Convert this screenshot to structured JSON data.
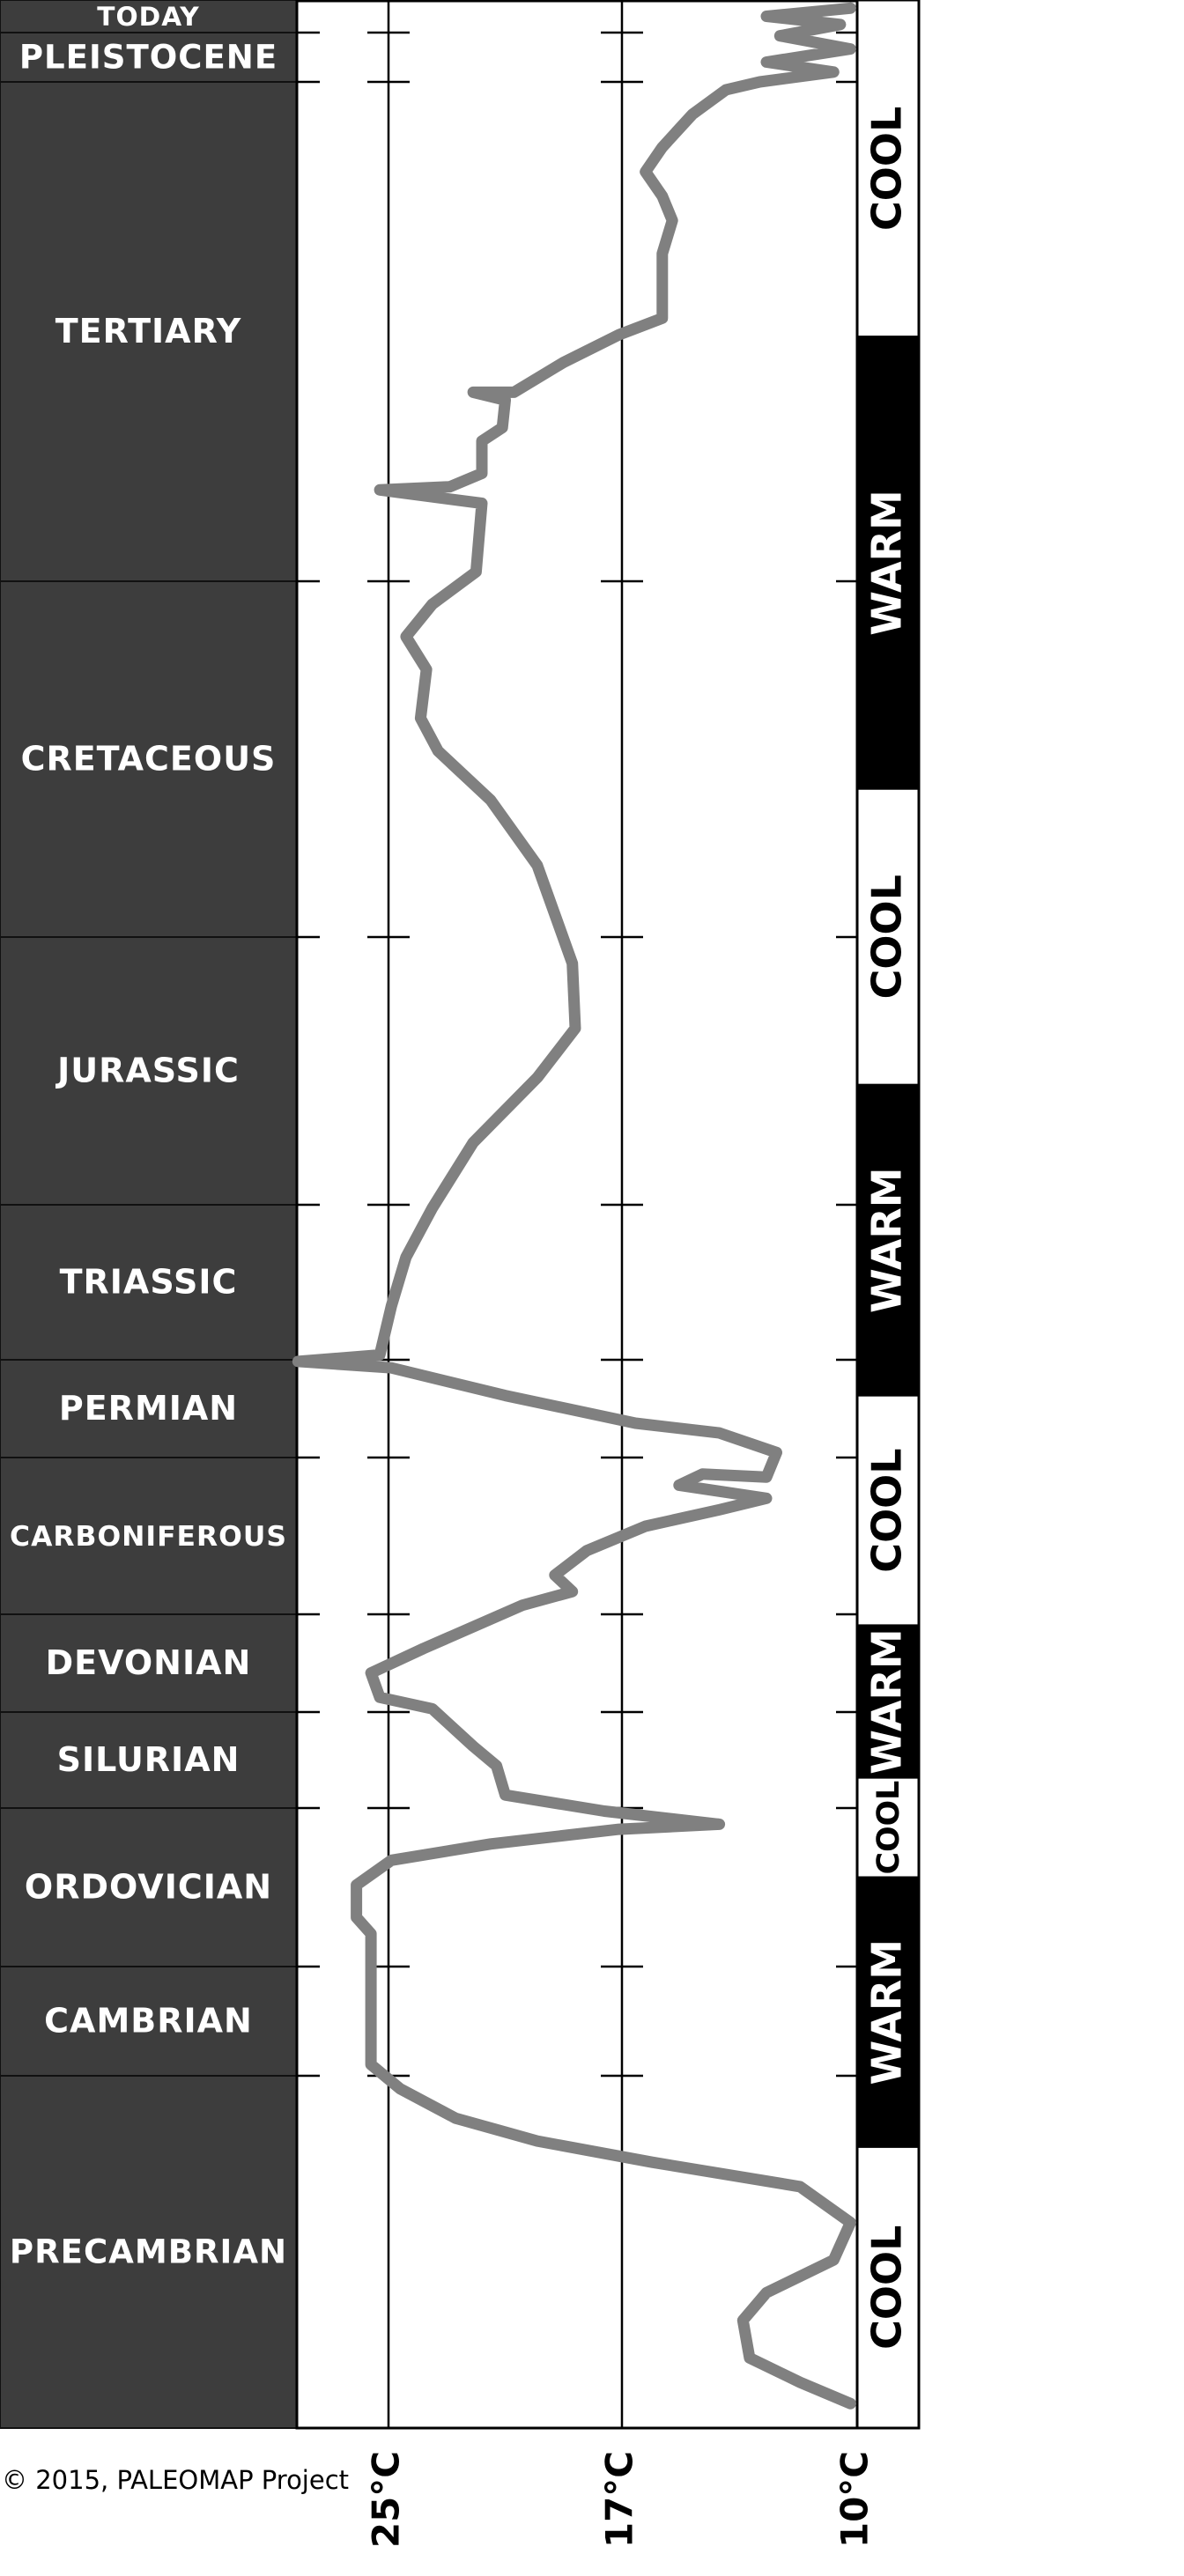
{
  "chart_data": {
    "type": "line",
    "categories": [
      "TODAY",
      "PLEISTOCENE",
      "TERTIARY",
      "CRETACEOUS",
      "JURASSIC",
      "TRIASSIC",
      "PERMIAN",
      "CARBONIFEROUS",
      "DEVONIAN",
      "SILURIAN",
      "ORDOVICIAN",
      "CAMBRIAN",
      "PRECAMBRIAN"
    ],
    "period_bounds": [
      0,
      0.01,
      2.6,
      66,
      145,
      201,
      252,
      299,
      359,
      419,
      444,
      485,
      541,
      750
    ],
    "climate": [
      {
        "label": "COOL",
        "start": 0,
        "end": 35,
        "color": "#ffffff"
      },
      {
        "label": "WARM",
        "start": 35,
        "end": 112,
        "color": "#000000"
      },
      {
        "label": "COOL",
        "start": 112,
        "end": 176,
        "color": "#ffffff"
      },
      {
        "label": "WARM",
        "start": 176,
        "end": 269,
        "color": "#000000"
      },
      {
        "label": "COOL",
        "start": 269,
        "end": 366,
        "color": "#ffffff"
      },
      {
        "label": "WARM",
        "start": 366,
        "end": 436,
        "color": "#000000"
      },
      {
        "label": "COOL",
        "start": 436,
        "end": 462,
        "color": "#ffffff"
      },
      {
        "label": "WARM",
        "start": 462,
        "end": 583,
        "color": "#000000"
      },
      {
        "label": "COOL",
        "start": 583,
        "end": 750,
        "color": "#ffffff"
      }
    ],
    "x": [
      0.0025,
      0.005,
      0.0075,
      0.18,
      0.87,
      1.56,
      2.08,
      2.6,
      3.6,
      6.7,
      10.9,
      14.0,
      17.1,
      20.2,
      24.4,
      32.6,
      34.7,
      38.2,
      42.0,
      42.0,
      43.0,
      46.5,
      48.2,
      52.3,
      54.0,
      54.4,
      56.1,
      64.8,
      71.1,
      78.3,
      85.6,
      96.4,
      103.7,
      114.6,
      129.1,
      150.5,
      164.1,
      174.4,
      188.0,
      202.1,
      218.2,
      234.3,
      250.4,
      252.8,
      255.9,
      269.2,
      282.5,
      287.2,
      296.6,
      306.5,
      305.3,
      309.6,
      314.6,
      319.0,
      325.3,
      334.6,
      344.0,
      350.3,
      355.5,
      380,
      395,
      410,
      417,
      427.9,
      433.0,
      440.6,
      444.8,
      448.2,
      449.5,
      453.3,
      457.5,
      463.9,
      472.3,
      476.5,
      535.2,
      548.7,
      566.2,
      579.7,
      592.3,
      606.8,
      628.1,
      650.3,
      669.7,
      686.1,
      708.4,
      722.9,
      735.5
    ],
    "values": [
      10.2,
      12.7,
      10.5,
      12.3,
      10.2,
      12.7,
      10.7,
      12.9,
      13.9,
      14.9,
      15.8,
      16.3,
      15.8,
      15.5,
      15.8,
      15.8,
      17.1,
      19.0,
      20.7,
      22.1,
      21.0,
      21.1,
      21.8,
      21.8,
      22.9,
      25.3,
      21.8,
      22.0,
      23.5,
      24.4,
      23.7,
      23.9,
      23.3,
      21.5,
      19.9,
      18.7,
      18.6,
      19.9,
      22.1,
      23.5,
      24.4,
      24.9,
      25.3,
      28.1,
      24.9,
      21.0,
      16.6,
      14.1,
      12.4,
      12.7,
      14.6,
      15.3,
      12.7,
      14.1,
      16.3,
      18.2,
      19.3,
      18.7,
      20.4,
      23.8,
      25.6,
      25.3,
      23.5,
      22.1,
      21.3,
      21.0,
      17.6,
      14.1,
      17.1,
      21.5,
      24.9,
      26.1,
      26.1,
      25.6,
      25.6,
      24.6,
      22.7,
      19.9,
      16.1,
      11.7,
      10.2,
      10.7,
      12.7,
      13.4,
      13.2,
      11.7,
      10.2
    ],
    "color": "#808080",
    "ylim": [
      28.1,
      10
    ],
    "yticks": [
      {
        "value": 25,
        "label": "25°C"
      },
      {
        "value": 17,
        "label": "17°C"
      },
      {
        "value": 10,
        "label": "10°C"
      }
    ],
    "grid": true,
    "credit": "© 2015, PALEOMAP Project"
  }
}
